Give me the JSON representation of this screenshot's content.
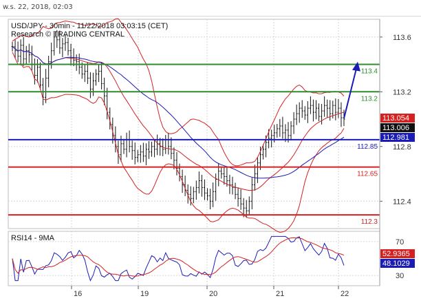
{
  "timestamp": "w.s. 22, 2018, 02:03",
  "chart_data": [
    {
      "type": "line",
      "title": "USD/JPY - 30min - 11/22/2018 03:03:15 (CET)",
      "subtitle": "Research © TRADING CENTRAL",
      "ylim": [
        112.2,
        113.75
      ],
      "y_ticks": [
        113.6,
        113.2,
        112.8,
        112.4
      ],
      "x_ticks": [
        "16",
        "19",
        "20",
        "21",
        "22"
      ],
      "levels": [
        {
          "value": 113.4,
          "label": "113.4",
          "color": "#2e8b2e"
        },
        {
          "value": 113.2,
          "label": "113.2",
          "color": "#2e8b2e"
        },
        {
          "value": 112.85,
          "label": "112.85",
          "color": "#1b1bb5"
        },
        {
          "value": 112.65,
          "label": "112.65",
          "color": "#d42020"
        },
        {
          "value": 112.3,
          "label": "112.3",
          "color": "#d42020"
        }
      ],
      "price_tags": [
        {
          "value": 113.054,
          "label": "113.054",
          "bg": "#d42020",
          "fg": "#ffffff"
        },
        {
          "value": 113.006,
          "label": "113.006",
          "bg": "#111111",
          "fg": "#ffffff"
        },
        {
          "value": 112.981,
          "label": "112.981",
          "bg": "#1b1bb5",
          "fg": "#ffffff"
        }
      ],
      "target_arrow": {
        "from": 113.006,
        "to": 113.42
      },
      "close_series": [
        113.53,
        113.5,
        113.46,
        113.54,
        113.44,
        113.5,
        113.47,
        113.4,
        113.32,
        113.38,
        113.25,
        113.16,
        113.3,
        113.42,
        113.5,
        113.6,
        113.58,
        113.52,
        113.55,
        113.56,
        113.5,
        113.45,
        113.43,
        113.42,
        113.38,
        113.33,
        113.35,
        113.3,
        113.22,
        113.28,
        113.33,
        113.35,
        113.26,
        113.17,
        113.05,
        112.96,
        112.88,
        112.8,
        112.74,
        112.82,
        112.78,
        112.85,
        112.8,
        112.77,
        112.72,
        112.74,
        112.76,
        112.73,
        112.78,
        112.76,
        112.8,
        112.78,
        112.82,
        112.8,
        112.78,
        112.85,
        112.8,
        112.75,
        112.7,
        112.64,
        112.58,
        112.52,
        112.48,
        112.45,
        112.42,
        112.47,
        112.5,
        112.55,
        112.5,
        112.46,
        112.44,
        112.4,
        112.47,
        112.56,
        112.62,
        112.6,
        112.58,
        112.55,
        112.52,
        112.5,
        112.45,
        112.42,
        112.38,
        112.35,
        112.33,
        112.4,
        112.52,
        112.6,
        112.68,
        112.74,
        112.78,
        112.83,
        112.86,
        112.88,
        112.9,
        112.93,
        112.95,
        112.9,
        112.92,
        112.88,
        112.95,
        113.0,
        113.04,
        113.08,
        113.06,
        113.03,
        113.08,
        113.1,
        113.05,
        113.08,
        113.02,
        113.06,
        113.1,
        113.08,
        113.04,
        113.1,
        113.05,
        113.08,
        113.01,
        113.0
      ]
    },
    {
      "type": "line",
      "title": "RSI14 - 9MA",
      "ylim": [
        18,
        82
      ],
      "y_ticks": [
        70,
        30
      ],
      "price_tags": [
        {
          "value": 52.9365,
          "label": "52.9365",
          "bg": "#d42020",
          "fg": "#ffffff"
        },
        {
          "value": 48.1029,
          "label": "48.1029",
          "bg": "#1b1bb5",
          "fg": "#ffffff"
        }
      ]
    }
  ]
}
